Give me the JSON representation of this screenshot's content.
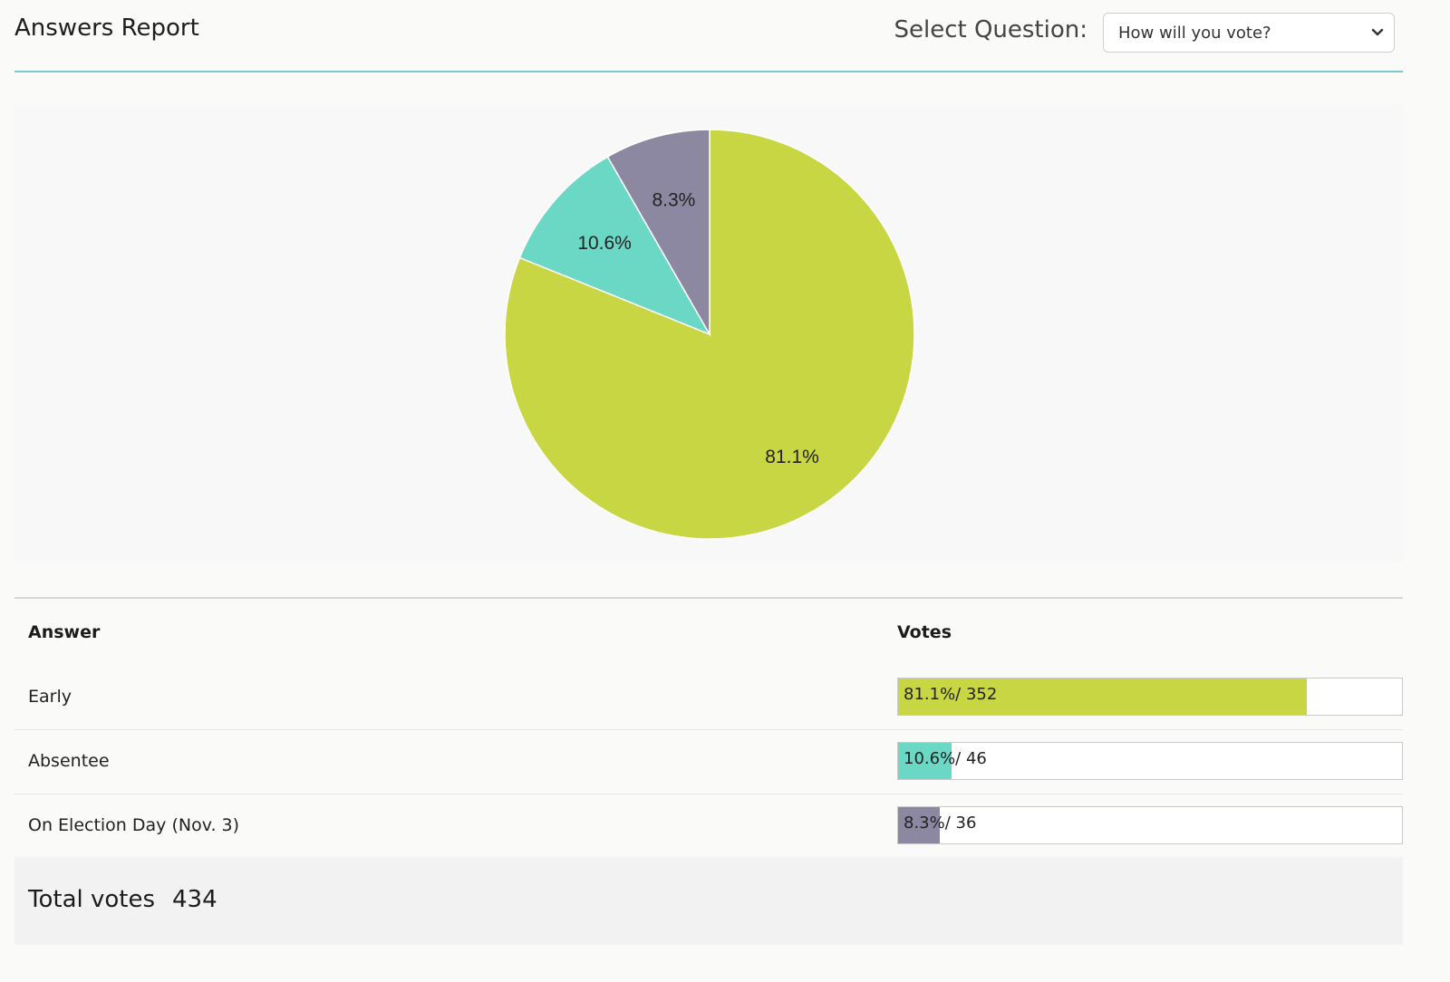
{
  "header": {
    "title": "Answers Report",
    "select_label": "Select Question:",
    "selected_question": "How will you vote?"
  },
  "chart_data": {
    "type": "pie",
    "title": "",
    "slices": [
      {
        "label": "Early",
        "value": 81.1,
        "display": "81.1%",
        "color": "#c8d643"
      },
      {
        "label": "Absentee",
        "value": 10.6,
        "display": "10.6%",
        "color": "#6bd8c6"
      },
      {
        "label": "On Election Day (Nov. 3)",
        "value": 8.3,
        "display": "8.3%",
        "color": "#8c88a2"
      }
    ]
  },
  "table": {
    "col_answer": "Answer",
    "col_votes": "Votes",
    "rows": [
      {
        "answer": "Early",
        "pct": 81.1,
        "bar_text": "81.1%/ 352",
        "color": "#c8d643"
      },
      {
        "answer": "Absentee",
        "pct": 10.6,
        "bar_text": "10.6%/ 46",
        "color": "#6bd8c6"
      },
      {
        "answer": "On Election Day (Nov. 3)",
        "pct": 8.3,
        "bar_text": "8.3%/ 36",
        "color": "#8c88a2"
      }
    ]
  },
  "total": {
    "label": "Total votes",
    "value": "434"
  }
}
